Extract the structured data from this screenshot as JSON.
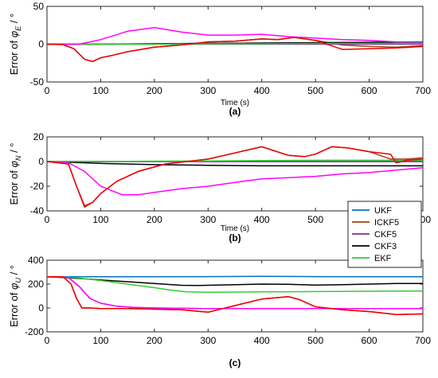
{
  "chart_data": [
    {
      "type": "line",
      "panel_label": "(a)",
      "ylabel_prefix": "Error of ",
      "ylabel_symbol": "φ",
      "ylabel_subscript": "E",
      "ylabel_suffix": " / °",
      "xlabel": "Time (s)",
      "xlim": [
        0,
        700
      ],
      "ylim": [
        -50,
        50
      ],
      "xticks": [
        0,
        100,
        200,
        300,
        400,
        500,
        600,
        700
      ],
      "yticks": [
        -50,
        0,
        50
      ],
      "series": [
        {
          "name": "UKF",
          "color": "#0072BD",
          "x": [
            0,
            100,
            200,
            300,
            400,
            500,
            600,
            700
          ],
          "y": [
            0,
            0,
            0.5,
            1,
            1.5,
            2,
            2,
            2
          ]
        },
        {
          "name": "ICKF5",
          "color": "#A2401A",
          "x": [
            0,
            30,
            50,
            70,
            85,
            100,
            120,
            150,
            200,
            250,
            300,
            350,
            400,
            430,
            460,
            500,
            550,
            600,
            650,
            700
          ],
          "y": [
            0,
            -0.5,
            -6,
            -20,
            -23,
            -18,
            -15,
            -10,
            -4,
            -1,
            3,
            4,
            7,
            6,
            9,
            5,
            -1,
            -3,
            -4,
            -2
          ]
        },
        {
          "name": "CKF5",
          "color": "#7E2F8E",
          "x": [
            0,
            100,
            200,
            300,
            400,
            500,
            600,
            700
          ],
          "y": [
            0,
            0,
            0,
            0,
            0,
            0,
            0,
            0
          ]
        },
        {
          "name": "CKF3",
          "color": "#000000",
          "x": [
            0,
            100,
            200,
            300,
            400,
            500,
            600,
            700
          ],
          "y": [
            0,
            0,
            0.5,
            1,
            1.5,
            2,
            2.5,
            3
          ]
        },
        {
          "name": "EKF",
          "color": "#33CC33",
          "x": [
            0,
            100,
            200,
            300,
            400,
            500,
            600,
            700
          ],
          "y": [
            0,
            0,
            0,
            0.5,
            0.5,
            1,
            1,
            1
          ]
        },
        {
          "name": "",
          "color": "#FF00FF",
          "x": [
            0,
            60,
            100,
            150,
            200,
            250,
            300,
            350,
            400,
            450,
            500,
            550,
            600,
            650,
            700
          ],
          "y": [
            0,
            0,
            6,
            17,
            22,
            16,
            12,
            12,
            13,
            10,
            8,
            6,
            5,
            3,
            3
          ]
        },
        {
          "name": "",
          "color": "#EE0000",
          "x": [
            0,
            30,
            50,
            70,
            85,
            100,
            120,
            150,
            200,
            250,
            300,
            350,
            400,
            430,
            460,
            500,
            550,
            600,
            650,
            700
          ],
          "y": [
            0,
            -0.5,
            -6,
            -20,
            -23,
            -18,
            -15,
            -10,
            -4,
            -1,
            3,
            4,
            7,
            6,
            9,
            5,
            -7,
            -6,
            -5,
            -3
          ]
        }
      ]
    },
    {
      "type": "line",
      "panel_label": "(b)",
      "ylabel_prefix": "Error of ",
      "ylabel_symbol": "φ",
      "ylabel_subscript": "N",
      "ylabel_suffix": " / °",
      "xlabel": "Time (s)",
      "xlim": [
        0,
        700
      ],
      "ylim": [
        -40,
        20
      ],
      "xticks": [
        0,
        100,
        200,
        300,
        400,
        500,
        600,
        700
      ],
      "yticks": [
        -40,
        -20,
        0,
        20
      ],
      "series": [
        {
          "name": "UKF",
          "color": "#0072BD",
          "x": [
            0,
            100,
            200,
            300,
            400,
            500,
            600,
            700
          ],
          "y": [
            0,
            0,
            0,
            0,
            0,
            0,
            0,
            0
          ]
        },
        {
          "name": "ICKF5",
          "color": "#A2401A",
          "x": [
            0,
            40,
            55,
            70,
            85,
            100,
            130,
            170,
            220,
            300,
            350,
            400,
            450,
            480,
            500,
            530,
            560,
            600,
            640,
            670,
            700
          ],
          "y": [
            0,
            -2,
            -20,
            -37,
            -33,
            -26,
            -16,
            -8,
            -2,
            2,
            7,
            12,
            5,
            4,
            6,
            12,
            11,
            8,
            2,
            2,
            3
          ]
        },
        {
          "name": "CKF5",
          "color": "#7E2F8E",
          "x": [
            0,
            100,
            200,
            300,
            400,
            500,
            600,
            700
          ],
          "y": [
            0,
            0,
            0,
            0,
            0,
            0,
            0,
            0
          ]
        },
        {
          "name": "CKF3",
          "color": "#000000",
          "x": [
            0,
            100,
            200,
            300,
            400,
            500,
            600,
            700
          ],
          "y": [
            0,
            -1.5,
            -2.5,
            -3,
            -3.5,
            -3.5,
            -3.5,
            -3.5
          ]
        },
        {
          "name": "EKF",
          "color": "#33CC33",
          "x": [
            0,
            100,
            200,
            300,
            400,
            500,
            600,
            700
          ],
          "y": [
            0,
            0,
            0.3,
            0.5,
            0.8,
            1,
            1,
            1
          ]
        },
        {
          "name": "",
          "color": "#FF00FF",
          "x": [
            0,
            40,
            70,
            100,
            140,
            170,
            200,
            250,
            300,
            350,
            400,
            450,
            500,
            550,
            600,
            650,
            700
          ],
          "y": [
            0,
            -1,
            -8,
            -20,
            -27,
            -27,
            -25,
            -22,
            -20,
            -17,
            -14,
            -13,
            -12,
            -10,
            -9,
            -7,
            -5
          ]
        },
        {
          "name": "",
          "color": "#EE0000",
          "x": [
            0,
            40,
            55,
            70,
            85,
            100,
            130,
            170,
            220,
            300,
            350,
            400,
            450,
            480,
            500,
            530,
            560,
            600,
            640,
            650,
            670,
            700
          ],
          "y": [
            0,
            -2,
            -20,
            -36,
            -33,
            -26,
            -16,
            -8,
            -2,
            2,
            7,
            12,
            5,
            4,
            6,
            12,
            11,
            8,
            6,
            -1,
            1,
            2
          ]
        }
      ]
    },
    {
      "type": "line",
      "panel_label": "(c)",
      "ylabel_prefix": "Error of ",
      "ylabel_symbol": "φ",
      "ylabel_subscript": "U",
      "ylabel_suffix": " / °",
      "xlabel": "",
      "xlim": [
        0,
        700
      ],
      "ylim": [
        -200,
        400
      ],
      "xticks": [
        0,
        100,
        200,
        300,
        400,
        500,
        600,
        700
      ],
      "yticks": [
        -200,
        0,
        200,
        400
      ],
      "legend_position": "top-right",
      "series": [
        {
          "name": "UKF",
          "color": "#0072BD",
          "x": [
            0,
            100,
            200,
            300,
            400,
            500,
            600,
            700
          ],
          "y": [
            262,
            262,
            262,
            263,
            265,
            263,
            262,
            262
          ]
        },
        {
          "name": "ICKF5",
          "color": "#A2401A",
          "x": [
            0,
            30,
            45,
            55,
            65,
            80,
            100,
            150,
            200,
            250,
            300,
            350,
            400,
            450,
            470,
            500,
            550,
            600,
            650,
            700
          ],
          "y": [
            262,
            262,
            200,
            80,
            0,
            0,
            -5,
            -5,
            -10,
            -15,
            -35,
            20,
            75,
            95,
            70,
            10,
            -15,
            -30,
            -55,
            -50
          ]
        },
        {
          "name": "CKF5",
          "color": "#7E2F8E",
          "x": [
            0,
            40,
            60,
            80,
            100,
            130,
            160,
            200,
            300,
            400,
            500,
            600,
            700
          ],
          "y": [
            262,
            255,
            180,
            80,
            40,
            15,
            5,
            0,
            -5,
            -5,
            -5,
            -5,
            -5
          ]
        },
        {
          "name": "CKF3",
          "color": "#000000",
          "x": [
            0,
            50,
            100,
            150,
            200,
            250,
            280,
            350,
            400,
            450,
            500,
            550,
            600,
            650,
            700
          ],
          "y": [
            262,
            250,
            235,
            220,
            205,
            190,
            188,
            195,
            200,
            198,
            192,
            195,
            200,
            205,
            205
          ]
        },
        {
          "name": "EKF",
          "color": "#33CC33",
          "x": [
            0,
            50,
            100,
            150,
            200,
            230,
            260,
            300,
            400,
            500,
            600,
            700
          ],
          "y": [
            262,
            255,
            230,
            200,
            170,
            150,
            135,
            132,
            135,
            137,
            140,
            142
          ]
        },
        {
          "name": "",
          "color": "#FF00FF",
          "x": [
            0,
            40,
            60,
            80,
            100,
            130,
            160,
            200,
            300,
            400,
            500,
            600,
            700
          ],
          "y": [
            262,
            255,
            180,
            80,
            40,
            15,
            5,
            0,
            -5,
            -5,
            -5,
            -5,
            -5
          ]
        },
        {
          "name": "",
          "color": "#EE0000",
          "x": [
            0,
            30,
            45,
            55,
            65,
            80,
            100,
            150,
            200,
            250,
            300,
            350,
            400,
            450,
            470,
            500,
            550,
            600,
            650,
            700
          ],
          "y": [
            262,
            262,
            200,
            80,
            0,
            0,
            -5,
            -5,
            -10,
            -15,
            -35,
            20,
            75,
            95,
            70,
            10,
            -15,
            -30,
            -55,
            -50
          ]
        }
      ]
    }
  ]
}
